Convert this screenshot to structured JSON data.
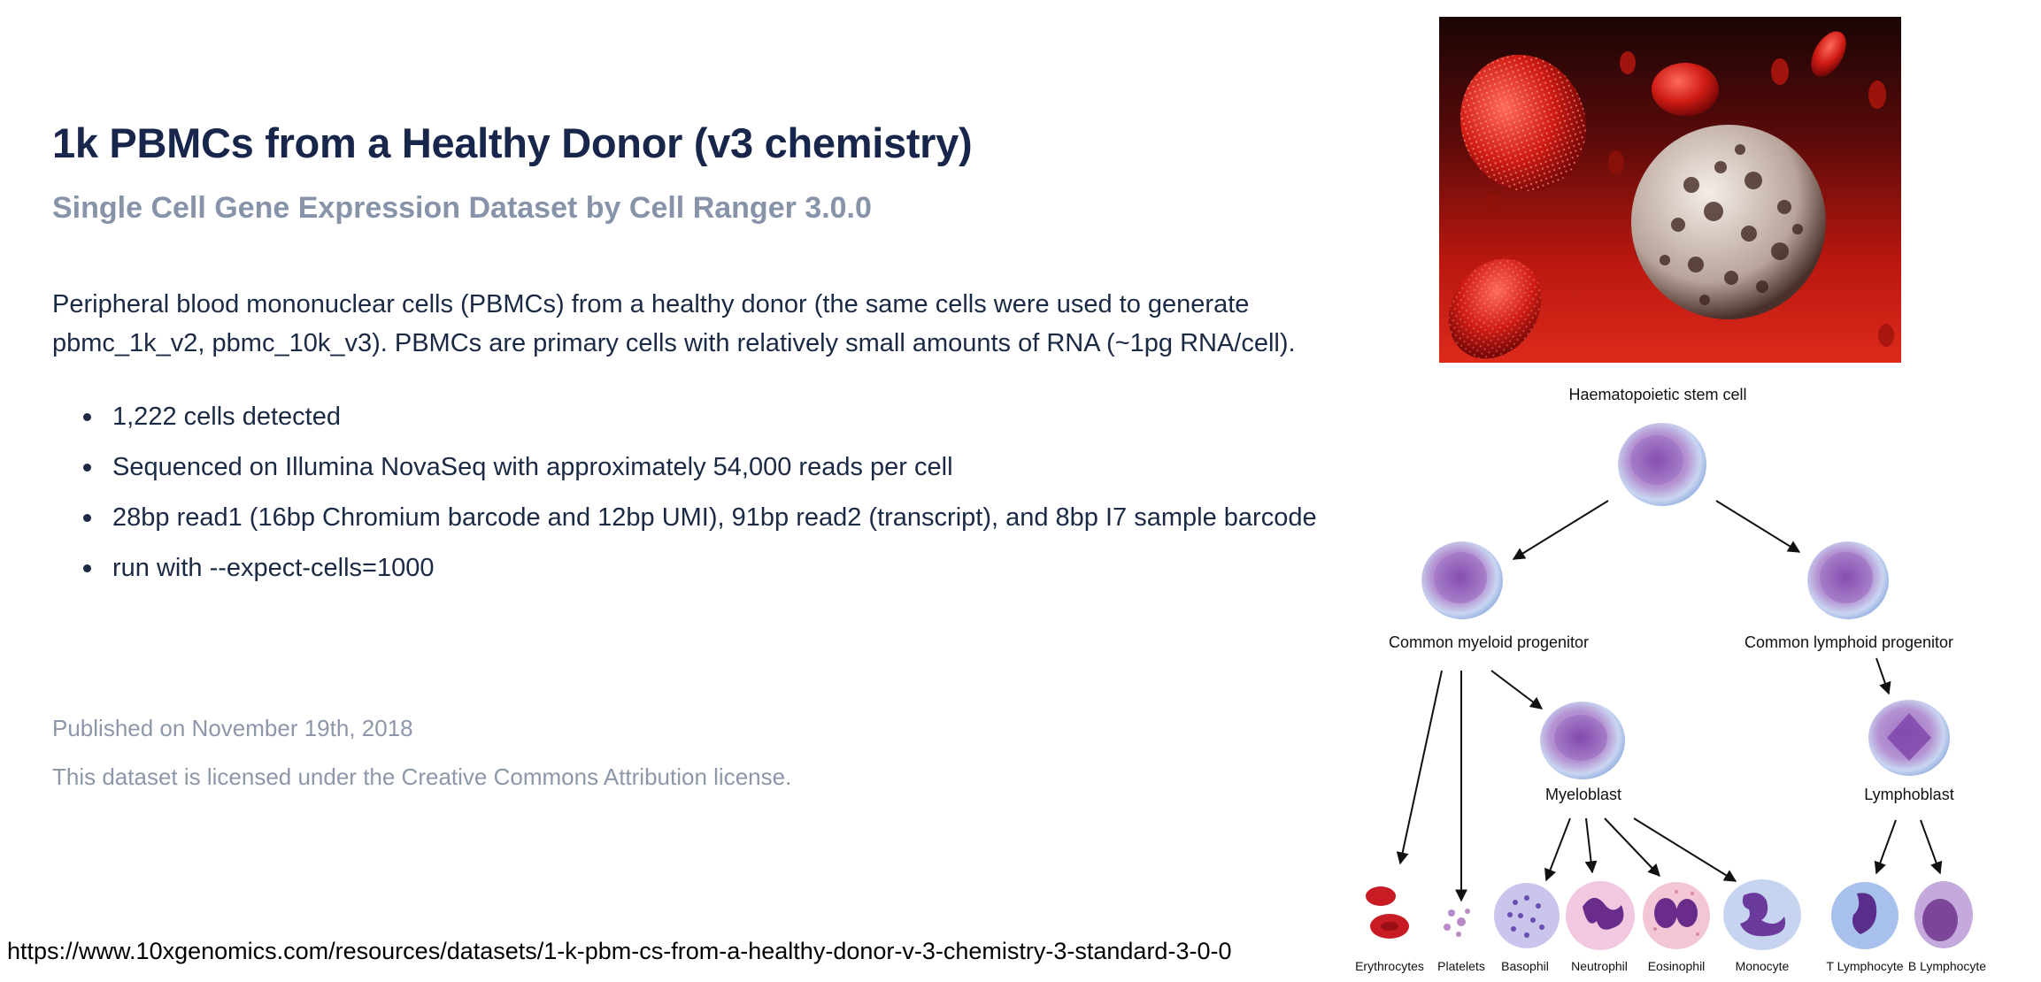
{
  "dataset": {
    "title": "1k PBMCs from a Healthy Donor (v3 chemistry)",
    "subtitle": "Single Cell Gene Expression Dataset by Cell Ranger 3.0.0",
    "description": "Peripheral blood mononuclear cells (PBMCs) from a healthy donor (the same cells were used to generate pbmc_1k_v2, pbmc_10k_v3). PBMCs are primary cells with relatively small amounts of RNA (~1pg RNA/cell).",
    "bullets": [
      "1,222 cells detected",
      "Sequenced on Illumina NovaSeq with approximately 54,000 reads per cell",
      "28bp read1 (16bp Chromium barcode and 12bp UMI), 91bp read2 (transcript), and 8bp I7 sample barcode",
      "run with --expect-cells=1000"
    ],
    "published": "Published on November 19th, 2018",
    "license": "This dataset is licensed under the Creative Commons Attribution license."
  },
  "url": "https://www.10xgenomics.com/resources/datasets/1-k-pbm-cs-from-a-healthy-donor-v-3-chemistry-3-standard-3-0-0",
  "diagram": {
    "root": "Haematopoietic stem cell",
    "myeloid_progenitor": "Common myeloid progenitor",
    "lymphoid_progenitor": "Common lymphoid progenitor",
    "myeloblast": "Myeloblast",
    "lymphoblast": "Lymphoblast",
    "leaves": {
      "erythrocytes": "Erythrocytes",
      "platelets": "Platelets",
      "basophil": "Basophil",
      "neutrophil": "Neutrophil",
      "eosinophil": "Eosinophil",
      "monocyte": "Monocyte",
      "t_lymphocyte": "T Lymphocyte",
      "b_lymphocyte": "B Lymphocyte"
    }
  },
  "colors": {
    "title": "#17264a",
    "muted": "#8793a8",
    "body_text": "#1b2a44",
    "cell_purple": "#8b5cb6",
    "blood_red": "#c81c12"
  }
}
